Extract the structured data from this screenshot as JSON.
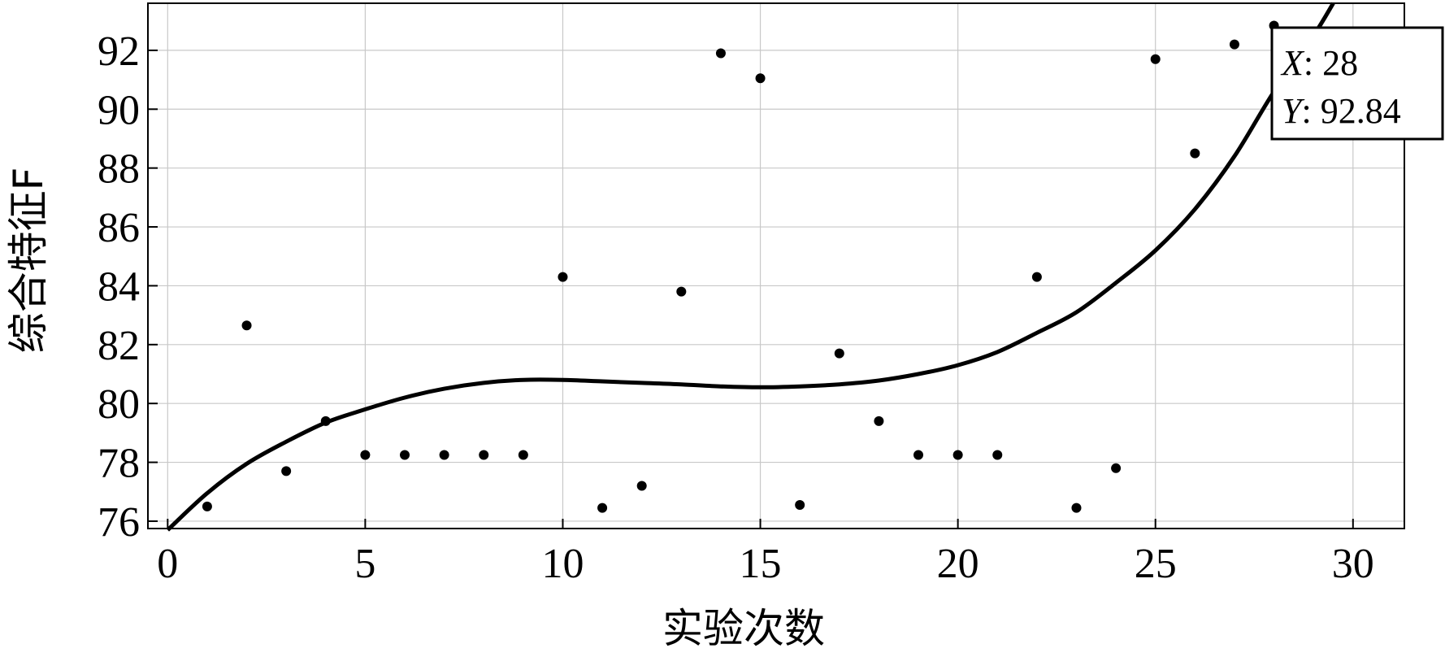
{
  "chart_data": {
    "type": "scatter",
    "title": "",
    "xlabel": "实验次数",
    "ylabel": "综合特征F",
    "xlim": [
      -0.5,
      31.3
    ],
    "ylim": [
      75.75,
      93.6
    ],
    "xticks": [
      0,
      5,
      10,
      15,
      20,
      25,
      30
    ],
    "yticks": [
      76,
      78,
      80,
      82,
      84,
      86,
      88,
      90,
      92
    ],
    "grid": true,
    "legend": "none",
    "series": [
      {
        "kind": "scatter",
        "x": [
          1,
          2,
          3,
          4,
          5,
          6,
          7,
          8,
          9,
          10,
          11,
          12,
          13,
          14,
          15,
          16,
          17,
          18,
          19,
          20,
          21,
          22,
          23,
          24,
          25,
          26,
          27,
          28
        ],
        "y": [
          76.5,
          82.65,
          77.7,
          79.4,
          78.25,
          78.25,
          78.25,
          78.25,
          78.25,
          84.3,
          76.45,
          77.2,
          83.8,
          91.9,
          91.05,
          76.55,
          81.7,
          79.4,
          78.25,
          78.25,
          78.25,
          84.3,
          76.45,
          77.8,
          91.7,
          88.5,
          92.2,
          92.84
        ]
      },
      {
        "kind": "line",
        "x": [
          0,
          1,
          2,
          3,
          4,
          5,
          6,
          7,
          8,
          9,
          10,
          11,
          12,
          13,
          14,
          15,
          16,
          17,
          18,
          19,
          20,
          21,
          22,
          23,
          24,
          25,
          26,
          27,
          28,
          29,
          29.5
        ],
        "y": [
          75.7,
          76.95,
          77.95,
          78.7,
          79.35,
          79.8,
          80.2,
          80.5,
          80.7,
          80.8,
          80.8,
          80.75,
          80.7,
          80.65,
          80.58,
          80.55,
          80.58,
          80.65,
          80.78,
          81.0,
          81.3,
          81.75,
          82.4,
          83.1,
          84.1,
          85.2,
          86.6,
          88.4,
          90.6,
          92.5,
          93.6
        ]
      }
    ],
    "datatip": {
      "x_label": "X",
      "x_value": ": 28",
      "y_label": "Y",
      "y_value": ": 92.84",
      "target": [
        28,
        92.84
      ]
    },
    "colors": {
      "points": "#000000",
      "curve": "#000000",
      "grid": "#c8c8c8",
      "frame": "#000000"
    }
  }
}
